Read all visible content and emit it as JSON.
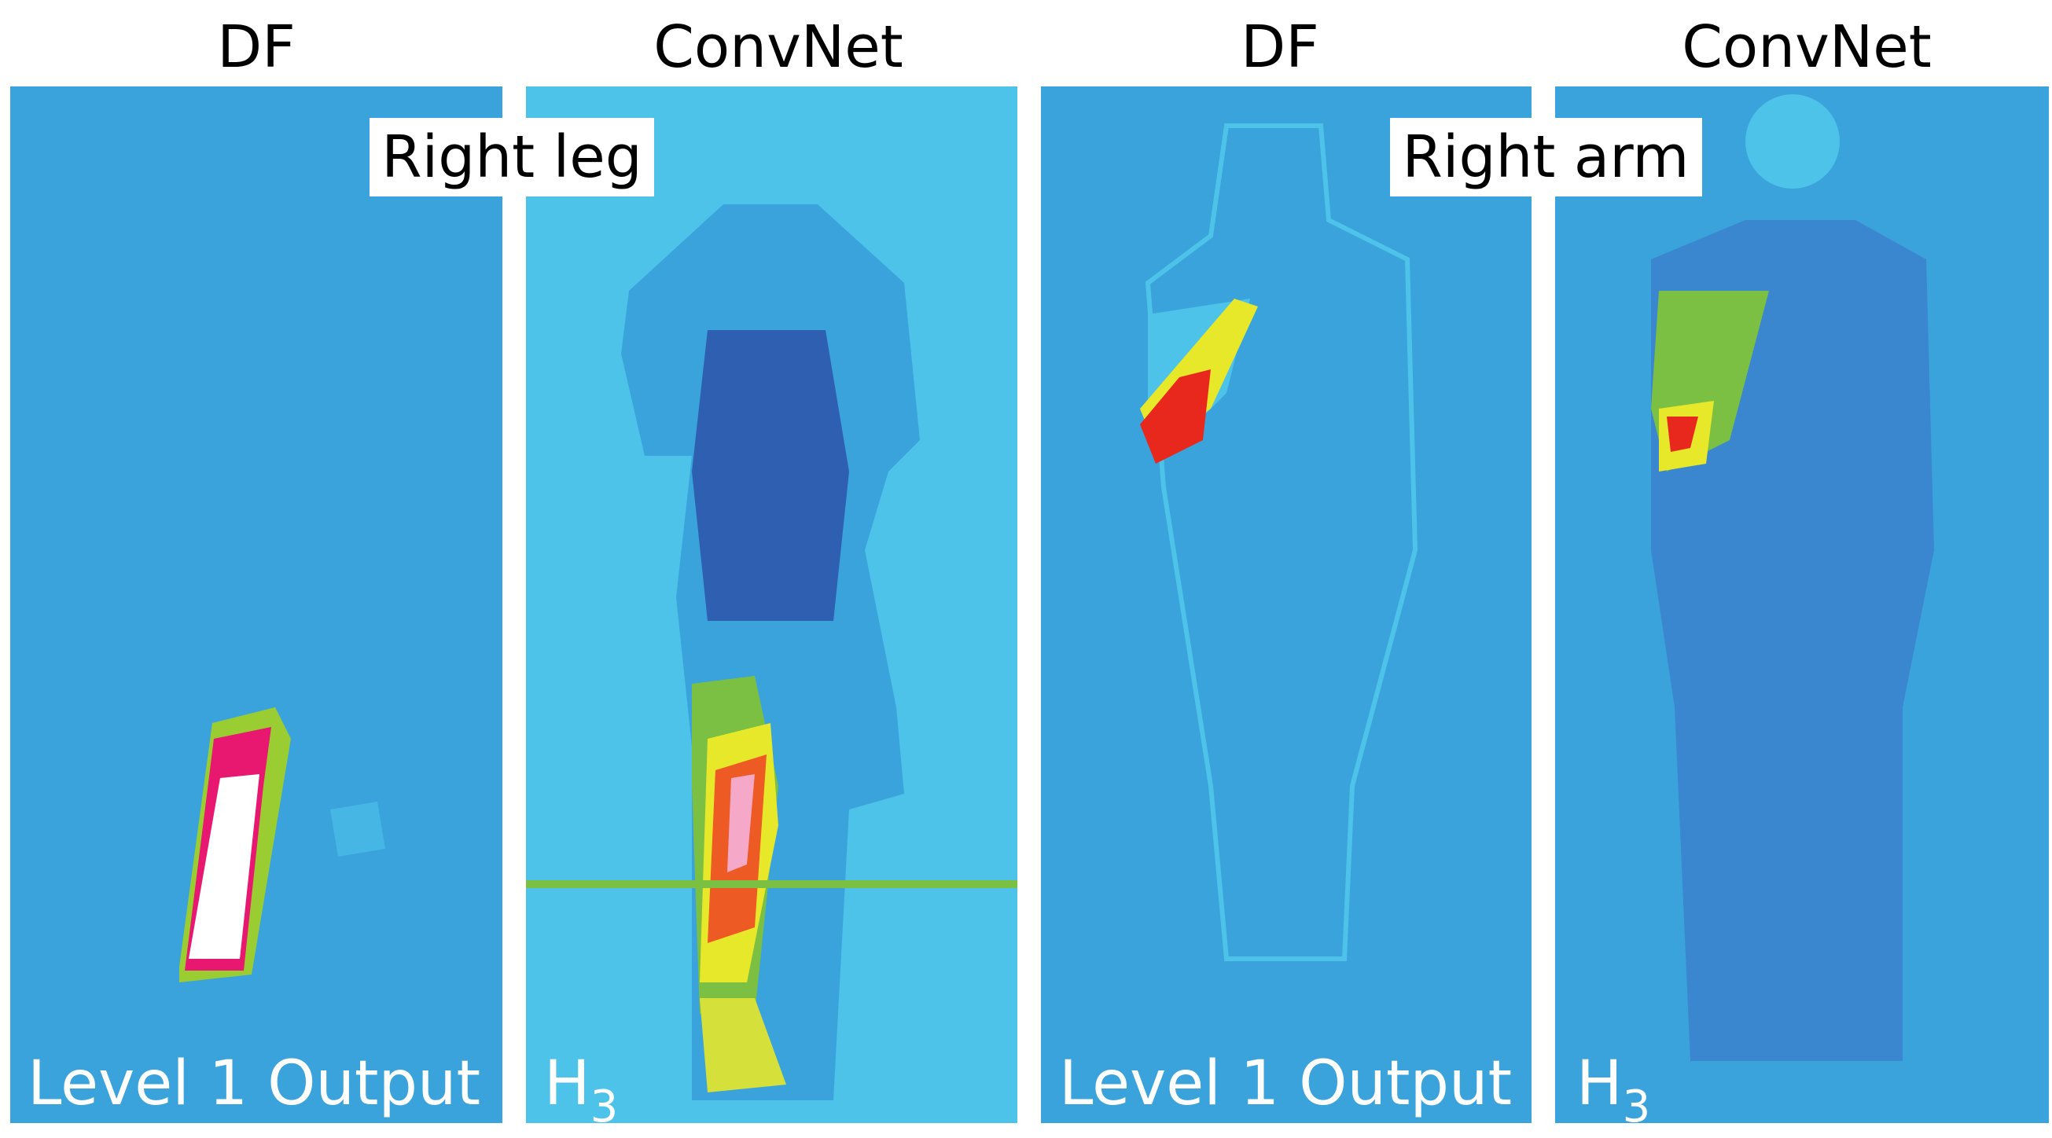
{
  "panels": [
    {
      "header": "DF",
      "footer": "Level 1 Output"
    },
    {
      "header": "ConvNet",
      "footer": {
        "base": "H",
        "sub": "3"
      }
    },
    {
      "header": "DF",
      "footer": "Level 1 Output"
    },
    {
      "header": "ConvNet",
      "footer": {
        "base": "H",
        "sub": "3"
      }
    }
  ],
  "overlays": [
    "Right leg",
    "Right arm"
  ]
}
